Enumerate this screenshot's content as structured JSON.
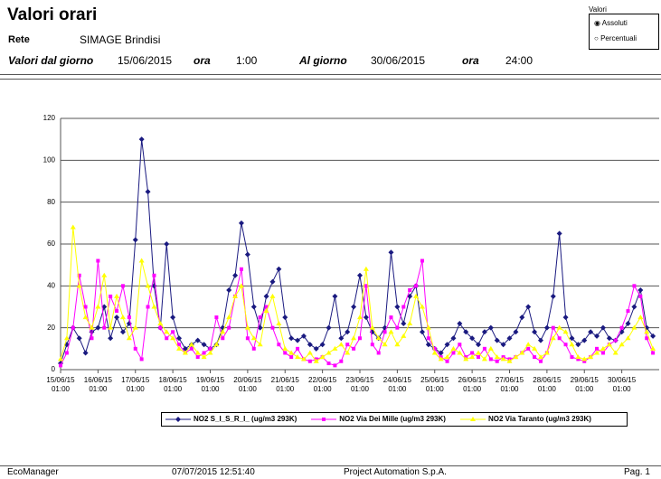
{
  "header": {
    "title": "Valori orari",
    "network_label": "Rete",
    "network": "SIMAGE Brindisi",
    "from_label": "Valori dal giorno",
    "from_date": "15/06/2015",
    "from_hour_label": "ora",
    "from_hour": "1:00",
    "to_label": "Al giorno",
    "to_date": "30/06/2015",
    "to_hour_label": "ora",
    "to_hour": "24:00"
  },
  "options": {
    "title": "Valori",
    "items": [
      "Assoluti",
      "Percentuali"
    ]
  },
  "chart_data": {
    "type": "line",
    "categories": [
      "15/06/15 01:00",
      null,
      null,
      null,
      null,
      null,
      "16/06/15 01:00",
      null,
      null,
      null,
      null,
      null,
      "17/06/15 01:00",
      null,
      null,
      null,
      null,
      null,
      "18/06/15 01:00",
      null,
      null,
      null,
      null,
      null,
      "19/06/15 01:00",
      null,
      null,
      null,
      null,
      null,
      "20/06/15 01:00",
      null,
      null,
      null,
      null,
      null,
      "21/06/15 01:00",
      null,
      null,
      null,
      null,
      null,
      "22/06/15 01:00",
      null,
      null,
      null,
      null,
      null,
      "23/06/15 01:00",
      null,
      null,
      null,
      null,
      null,
      "24/06/15 01:00",
      null,
      null,
      null,
      null,
      null,
      "25/06/15 01:00",
      null,
      null,
      null,
      null,
      null,
      "26/06/15 01:00",
      null,
      null,
      null,
      null,
      null,
      "27/06/15 01:00",
      null,
      null,
      null,
      null,
      null,
      "28/06/15 01:00",
      null,
      null,
      null,
      null,
      null,
      "29/06/15 01:00",
      null,
      null,
      null,
      null,
      null,
      "30/06/15 01:00",
      null,
      null,
      null,
      null,
      null
    ],
    "ylim": [
      0,
      120
    ],
    "yticks": [
      0,
      20,
      40,
      60,
      80,
      100,
      120
    ],
    "grid": true,
    "series": [
      {
        "name": "NO2 S_I_S_R_I_ (ug/m3 293K)",
        "color": "#1a1a80",
        "marker": "diamond",
        "values": [
          3,
          12,
          20,
          15,
          8,
          18,
          20,
          30,
          15,
          25,
          18,
          22,
          62,
          110,
          85,
          40,
          20,
          60,
          25,
          15,
          10,
          12,
          14,
          12,
          10,
          12,
          20,
          38,
          45,
          70,
          55,
          30,
          20,
          35,
          42,
          48,
          25,
          15,
          14,
          16,
          12,
          10,
          12,
          20,
          35,
          15,
          18,
          30,
          45,
          25,
          18,
          15,
          20,
          56,
          30,
          22,
          35,
          40,
          18,
          12,
          10,
          8,
          12,
          15,
          22,
          18,
          15,
          12,
          18,
          20,
          14,
          12,
          15,
          18,
          25,
          30,
          18,
          14,
          20,
          35,
          65,
          25,
          15,
          12,
          14,
          18,
          16,
          20,
          15,
          14,
          18,
          22,
          30,
          38,
          20,
          16
        ]
      },
      {
        "name": "NO2 Via Dei Mille (ug/m3 293K)",
        "color": "#ff00ff",
        "marker": "square",
        "values": [
          2,
          8,
          20,
          45,
          30,
          15,
          52,
          20,
          35,
          28,
          40,
          25,
          10,
          5,
          30,
          45,
          20,
          15,
          18,
          12,
          8,
          10,
          6,
          8,
          10,
          25,
          15,
          20,
          35,
          48,
          15,
          10,
          25,
          30,
          20,
          12,
          8,
          6,
          10,
          5,
          4,
          5,
          6,
          3,
          2,
          4,
          12,
          10,
          15,
          40,
          12,
          8,
          18,
          25,
          20,
          30,
          38,
          40,
          52,
          15,
          10,
          6,
          4,
          8,
          12,
          6,
          8,
          6,
          10,
          5,
          4,
          6,
          5,
          6,
          8,
          10,
          6,
          4,
          8,
          20,
          15,
          12,
          6,
          5,
          4,
          6,
          10,
          8,
          12,
          14,
          20,
          28,
          40,
          35,
          15,
          8
        ]
      },
      {
        "name": "NO2 Via Taranto (ug/m3 293K)",
        "color": "#ffff00",
        "marker": "triangle",
        "values": [
          5,
          15,
          68,
          40,
          25,
          20,
          30,
          45,
          20,
          35,
          25,
          15,
          20,
          52,
          40,
          30,
          22,
          18,
          15,
          10,
          8,
          12,
          8,
          6,
          8,
          12,
          18,
          25,
          35,
          40,
          20,
          15,
          12,
          28,
          35,
          22,
          10,
          8,
          6,
          5,
          8,
          4,
          6,
          8,
          10,
          12,
          8,
          15,
          25,
          48,
          20,
          15,
          12,
          18,
          12,
          16,
          22,
          35,
          30,
          20,
          8,
          5,
          6,
          10,
          8,
          5,
          6,
          8,
          5,
          10,
          6,
          5,
          4,
          6,
          8,
          12,
          10,
          6,
          8,
          15,
          20,
          18,
          12,
          6,
          5,
          6,
          8,
          10,
          12,
          8,
          12,
          15,
          20,
          25,
          18,
          10
        ]
      }
    ]
  },
  "footer": {
    "app": "EcoManager",
    "timestamp": "07/07/2015 12:51:40",
    "company": "Project Automation S.p.A.",
    "page": "Pag. 1"
  }
}
